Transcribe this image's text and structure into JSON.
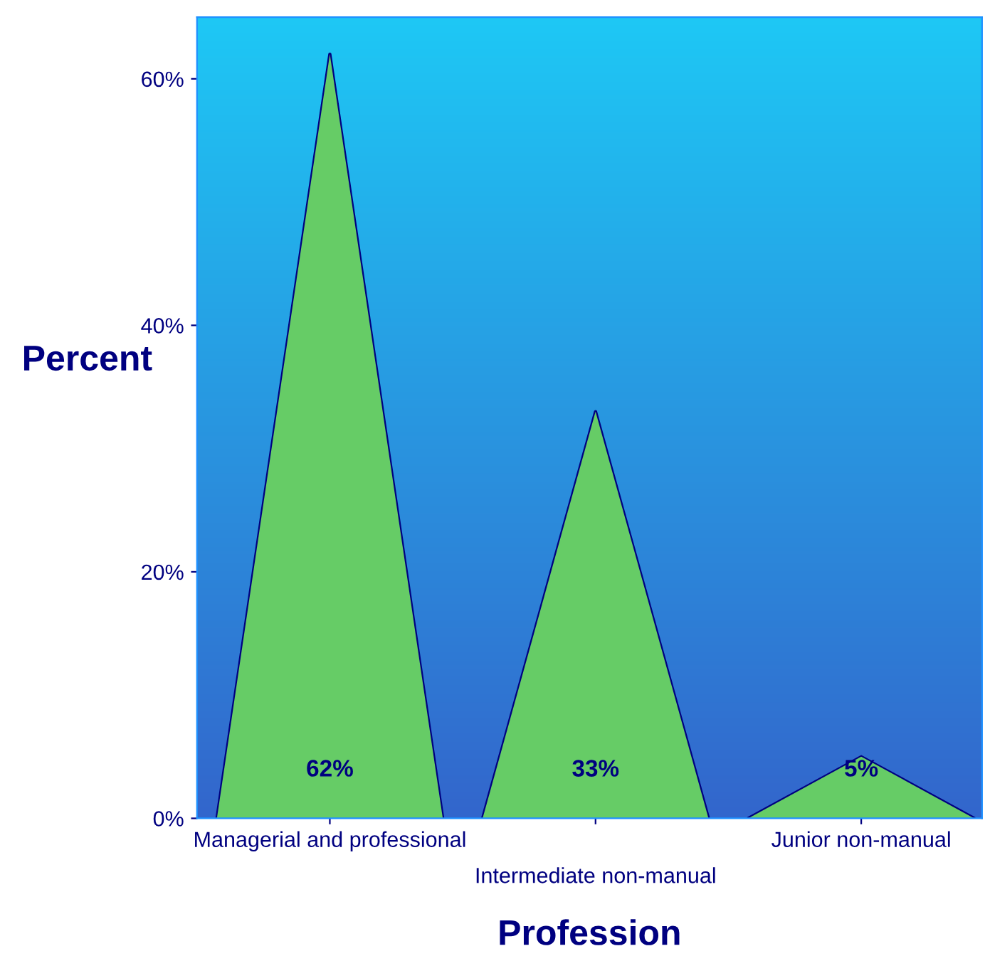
{
  "chart_data": {
    "type": "bar",
    "xlabel": "Profession",
    "ylabel": "Percent",
    "categories": [
      "Managerial and professional",
      "Intermediate non-manual",
      "Junior non-manual"
    ],
    "values": [
      62,
      33,
      5
    ],
    "value_labels": [
      "62%",
      "33%",
      "5%"
    ],
    "color": "#66cc66",
    "ylim": [
      0,
      65
    ],
    "yticks": [
      {
        "value": 0,
        "label": "0%"
      },
      {
        "value": 20,
        "label": "20%"
      },
      {
        "value": 40,
        "label": "40%"
      },
      {
        "value": 60,
        "label": "60%"
      }
    ],
    "grid": false,
    "legend": false
  }
}
